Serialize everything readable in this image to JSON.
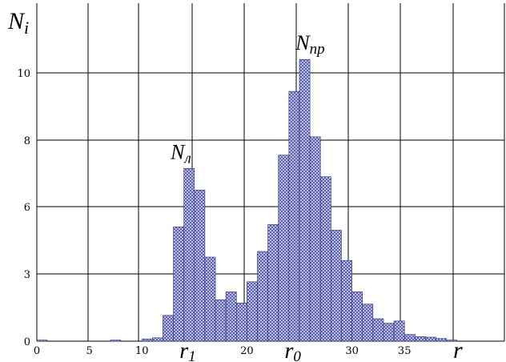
{
  "chart_data": {
    "type": "bar",
    "title": "",
    "ylabel": "N",
    "ylabel_sub": "i",
    "xlabel": "r",
    "x_ticks": [
      "0",
      "5",
      "10",
      "20",
      "30",
      "35"
    ],
    "y_ticks": [
      "0",
      "3",
      "6",
      "8",
      "10"
    ],
    "xlim": [
      0,
      44
    ],
    "grid": true,
    "bar_width": 1,
    "bins": [
      {
        "x": 0,
        "value": 0.05
      },
      {
        "x": 7,
        "value": 0.05
      },
      {
        "x": 10,
        "value": 0.1
      },
      {
        "x": 11,
        "value": 0.15
      },
      {
        "x": 12,
        "value": 1.15
      },
      {
        "x": 13,
        "value": 5.1
      },
      {
        "x": 14,
        "value": 7.15
      },
      {
        "x": 15,
        "value": 6.5
      },
      {
        "x": 16,
        "value": 3.75
      },
      {
        "x": 17,
        "value": 1.85
      },
      {
        "x": 18,
        "value": 2.2
      },
      {
        "x": 19,
        "value": 1.7
      },
      {
        "x": 20,
        "value": 2.65
      },
      {
        "x": 21,
        "value": 4.0
      },
      {
        "x": 22,
        "value": 5.2
      },
      {
        "x": 23,
        "value": 7.55
      },
      {
        "x": 24,
        "value": 9.45
      },
      {
        "x": 25,
        "value": 10.4
      },
      {
        "x": 26,
        "value": 8.1
      },
      {
        "x": 27,
        "value": 6.9
      },
      {
        "x": 28,
        "value": 4.95
      },
      {
        "x": 29,
        "value": 3.6
      },
      {
        "x": 30,
        "value": 2.2
      },
      {
        "x": 31,
        "value": 1.65
      },
      {
        "x": 32,
        "value": 1.0
      },
      {
        "x": 33,
        "value": 0.8
      },
      {
        "x": 34,
        "value": 0.9
      },
      {
        "x": 35,
        "value": 0.3
      },
      {
        "x": 36,
        "value": 0.2
      },
      {
        "x": 37,
        "value": 0.18
      },
      {
        "x": 38,
        "value": 0.12
      },
      {
        "x": 39,
        "value": 0.05
      }
    ],
    "annotations": [
      {
        "text": "N",
        "sub": "л",
        "x": 13.5,
        "value": 7.15
      },
      {
        "text": "N",
        "sub": "np",
        "x": 25.4,
        "value": 10.4
      }
    ],
    "x_markers": [
      {
        "text": "r",
        "sub": "1",
        "x": 14.5
      },
      {
        "text": "r",
        "sub": "0",
        "x": 24.5
      }
    ],
    "colors": {
      "bar_fill": "#c9cbe8",
      "bar_hatch": "#3a3f9a",
      "bar_edge": "#2b2f7a",
      "grid": "#000000"
    }
  }
}
